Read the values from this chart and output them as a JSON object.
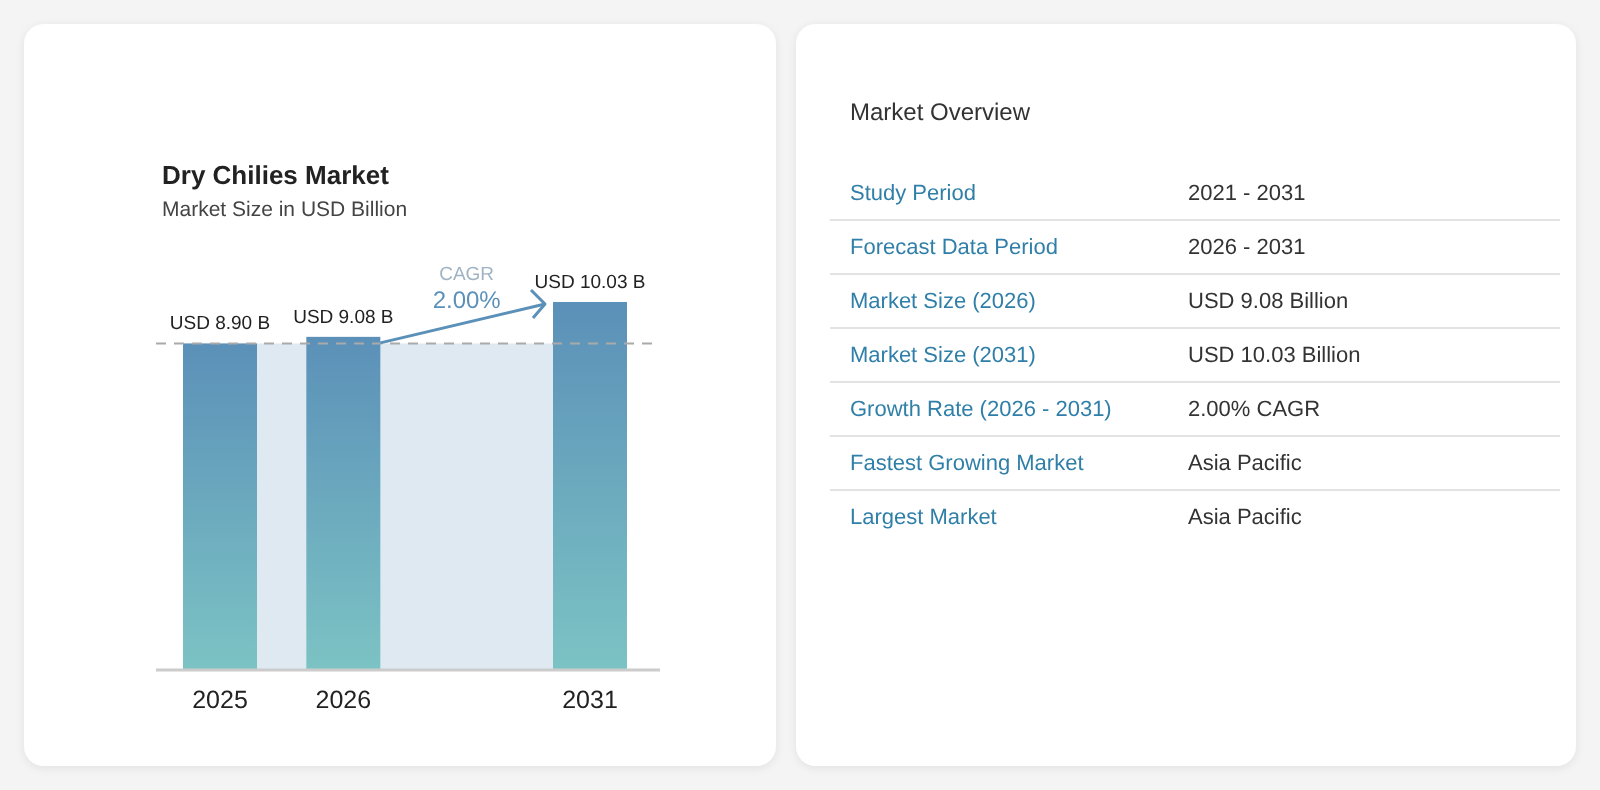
{
  "chart_data": [
    {
      "type": "bar",
      "title": "Dry Chilies Market",
      "subtitle": "Market Size in USD Billion",
      "categories": [
        "2025",
        "2026",
        "2031"
      ],
      "values": [
        8.9,
        9.08,
        10.03
      ],
      "value_labels": [
        "USD 8.90 B",
        "USD 9.08 B",
        "USD 10.03 B"
      ],
      "color": "#5b90b8",
      "ref_lines": [
        {
          "axis": "y",
          "value": 8.9,
          "line_style": "dashed",
          "color": "#aaaaaa"
        }
      ],
      "bands": [
        {
          "axis": "y",
          "from": 0,
          "to": 8.9,
          "color": "#dfe9f2"
        }
      ],
      "annotations": [
        "CAGR",
        "2.00%"
      ]
    },
    {
      "type": "other",
      "title": "Market Overview",
      "categories": [
        "Study Period",
        "Forecast Data Period",
        "Market Size (2026)",
        "Market Size (2031)",
        "Growth Rate (2026 - 2031)",
        "Fastest Growing Market",
        "Largest Market"
      ],
      "annotations": [
        "2021 - 2031",
        "2026 - 2031",
        "USD 9.08 Billion",
        "USD 10.03 Billion",
        "2.00% CAGR",
        "Asia Pacific",
        "Asia Pacific"
      ]
    }
  ]
}
